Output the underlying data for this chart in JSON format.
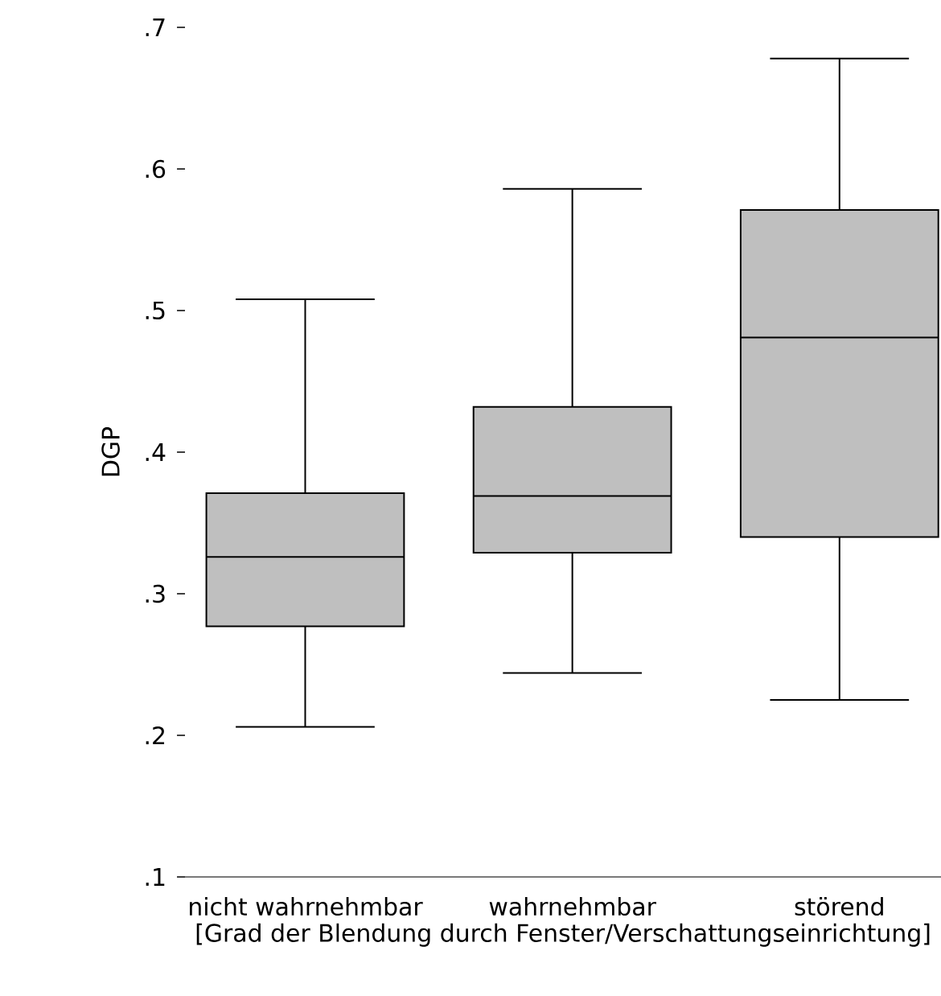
{
  "chart_data": {
    "type": "box",
    "xlabel": "[Grad der Blendung durch Fenster/Verschattungseinrichtung]",
    "ylabel": "DGP",
    "categories": [
      "nicht wahrnehmbar",
      "wahrnehmbar",
      "störend"
    ],
    "color": "#bfbfbf",
    "boxes": [
      {
        "low": 0.206,
        "q1": 0.277,
        "median": 0.326,
        "q3": 0.371,
        "high": 0.508
      },
      {
        "low": 0.244,
        "q1": 0.329,
        "median": 0.369,
        "q3": 0.432,
        "high": 0.586
      },
      {
        "low": 0.225,
        "q1": 0.34,
        "median": 0.481,
        "q3": 0.571,
        "high": 0.678
      }
    ],
    "ylim": [
      0.1,
      0.7
    ],
    "yticks": [
      {
        "value": 0.1,
        "label": ".1"
      },
      {
        "value": 0.2,
        "label": ".2"
      },
      {
        "value": 0.3,
        "label": ".3"
      },
      {
        "value": 0.4,
        "label": ".4"
      },
      {
        "value": 0.5,
        "label": ".5"
      },
      {
        "value": 0.6,
        "label": ".6"
      },
      {
        "value": 0.7,
        "label": ".7"
      }
    ]
  }
}
